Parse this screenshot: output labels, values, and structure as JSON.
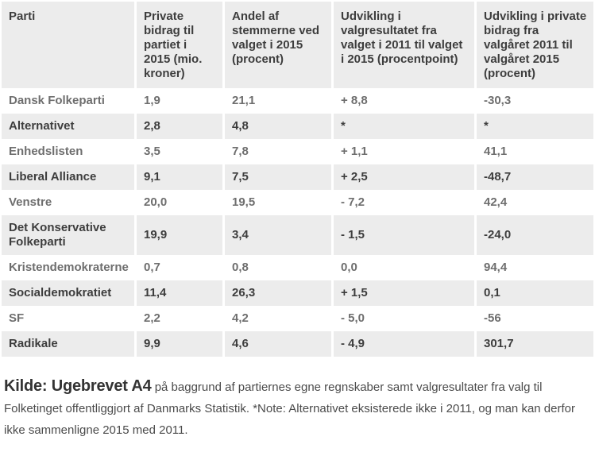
{
  "chart_data": {
    "type": "table",
    "columns": [
      "Parti",
      "Private bidrag til partiet i 2015 (mio. kroner)",
      "Andel af stemmerne ved valget i 2015 (procent)",
      "Udvikling i valgresultatet fra valget i 2011 til valget i 2015 (procentpoint)",
      "Udvikling i private bidrag fra valgåret 2011 til valgåret 2015 (procent)"
    ],
    "rows": [
      [
        "Dansk Folkeparti",
        "1,9",
        "21,1",
        "+ 8,8",
        "-30,3"
      ],
      [
        "Alternativet",
        "2,8",
        "4,8",
        "*",
        "*"
      ],
      [
        "Enhedslisten",
        "3,5",
        "7,8",
        "+ 1,1",
        "41,1"
      ],
      [
        "Liberal Alliance",
        "9,1",
        "7,5",
        "+ 2,5",
        "-48,7"
      ],
      [
        "Venstre",
        "20,0",
        "19,5",
        "- 7,2",
        "42,4"
      ],
      [
        "Det Konservative Folkeparti",
        "19,9",
        "3,4",
        "- 1,5",
        "-24,0"
      ],
      [
        "Kristendemokraterne",
        "0,7",
        "0,8",
        "0,0",
        "94,4"
      ],
      [
        "Socialdemokratiet",
        "11,4",
        "26,3",
        "+ 1,5",
        "0,1"
      ],
      [
        "SF",
        "2,2",
        "4,2",
        "- 5,0",
        "-56"
      ],
      [
        "Radikale",
        "9,9",
        "4,6",
        "- 4,9",
        "301,7"
      ]
    ]
  },
  "footer": {
    "source_label": "Kilde: Ugebrevet A4",
    "source_text": "på baggrund af partiernes egne regnskaber samt valgresultater fra valg til Folketinget offentliggjort af Danmarks Statistik. *Note: Alternativet eksisterede ikke i 2011, og man kan derfor ikke sammenligne 2015 med 2011."
  },
  "colors": {
    "row_alt_background": "#ececec",
    "dark_text": "#3d3d3d",
    "muted_text": "#6e6e6e"
  }
}
